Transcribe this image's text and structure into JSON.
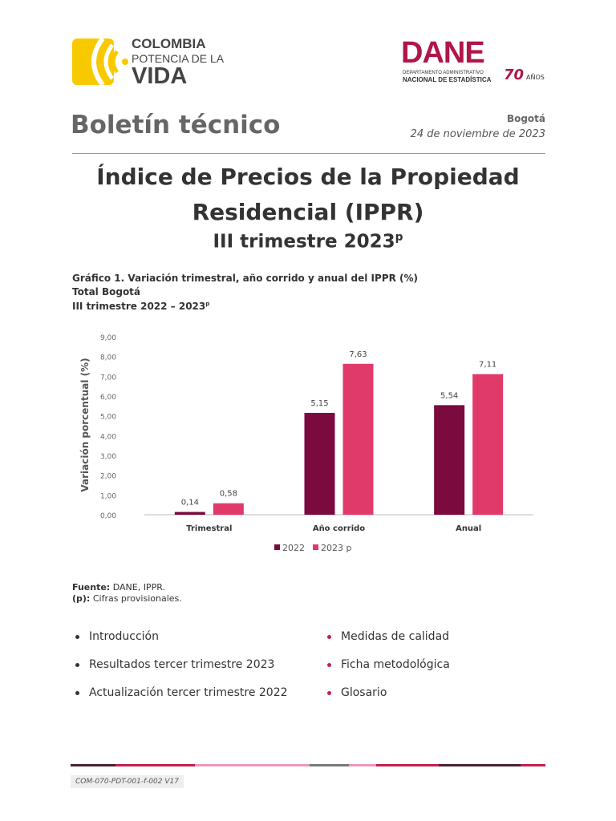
{
  "header": {
    "left_logo": {
      "line1": "COLOMBIA",
      "line2": "POTENCIA DE LA",
      "line3": "VIDA"
    },
    "right_logo": {
      "name": "DANE",
      "line1": "DEPARTAMENTO ADMINISTRATIVO",
      "line2": "NACIONAL DE ESTADÍSTICA",
      "anniversary": "70",
      "anniversary_suffix": "AÑOS"
    },
    "doc_type": "Boletín técnico",
    "city": "Bogotá",
    "date": "24 de noviembre de 2023"
  },
  "title": {
    "line1": "Índice de Precios de la Propiedad",
    "line2": "Residencial (IPPR)",
    "line3": "III trimestre 2023",
    "line3_sup": "p"
  },
  "figure": {
    "caption1": "Gráfico 1. Variación trimestral, año corrido y anual del IPPR (%)",
    "caption2": "Total Bogotá",
    "caption3": "III trimestre 2022 – 2023",
    "caption3_sup": "p"
  },
  "chart_data": {
    "type": "bar",
    "categories": [
      "Trimestral",
      "Año corrido",
      "Anual"
    ],
    "series": [
      {
        "name": "2022",
        "values": [
          0.14,
          5.15,
          5.54
        ],
        "labels": [
          "0,14",
          "5,15",
          "5,54"
        ],
        "color": "#7b0a3e"
      },
      {
        "name": "2023 p",
        "values": [
          0.58,
          7.63,
          7.11
        ],
        "labels": [
          "0,58",
          "7,63",
          "7,11"
        ],
        "color": "#e03a6a"
      }
    ],
    "ylabel": "Variación porcentual (%)",
    "ylim": [
      0,
      9
    ],
    "yticks": [
      "0,00",
      "1,00",
      "2,00",
      "3,00",
      "4,00",
      "5,00",
      "6,00",
      "7,00",
      "8,00",
      "9,00"
    ],
    "grid": false,
    "legend": "bottom"
  },
  "notes": {
    "source_label": "Fuente:",
    "source": "DANE, IPPR.",
    "prov_label": "(p):",
    "prov": "Cifras provisionales."
  },
  "contents": {
    "left": [
      "Introducción",
      "Resultados tercer trimestre 2023",
      "Actualización tercer trimestre 2022"
    ],
    "right": [
      "Medidas de calidad",
      "Ficha metodológica",
      "Glosario"
    ]
  },
  "colors": {
    "dane": "#b0154b",
    "yellow": "#f9c900",
    "dark": "#4a2130",
    "crimson": "#c0214f",
    "pink": "#ee96be",
    "gray": "#7a7a7a"
  },
  "footer": {
    "code": "COM-070-PDT-001-f-002 V17"
  }
}
